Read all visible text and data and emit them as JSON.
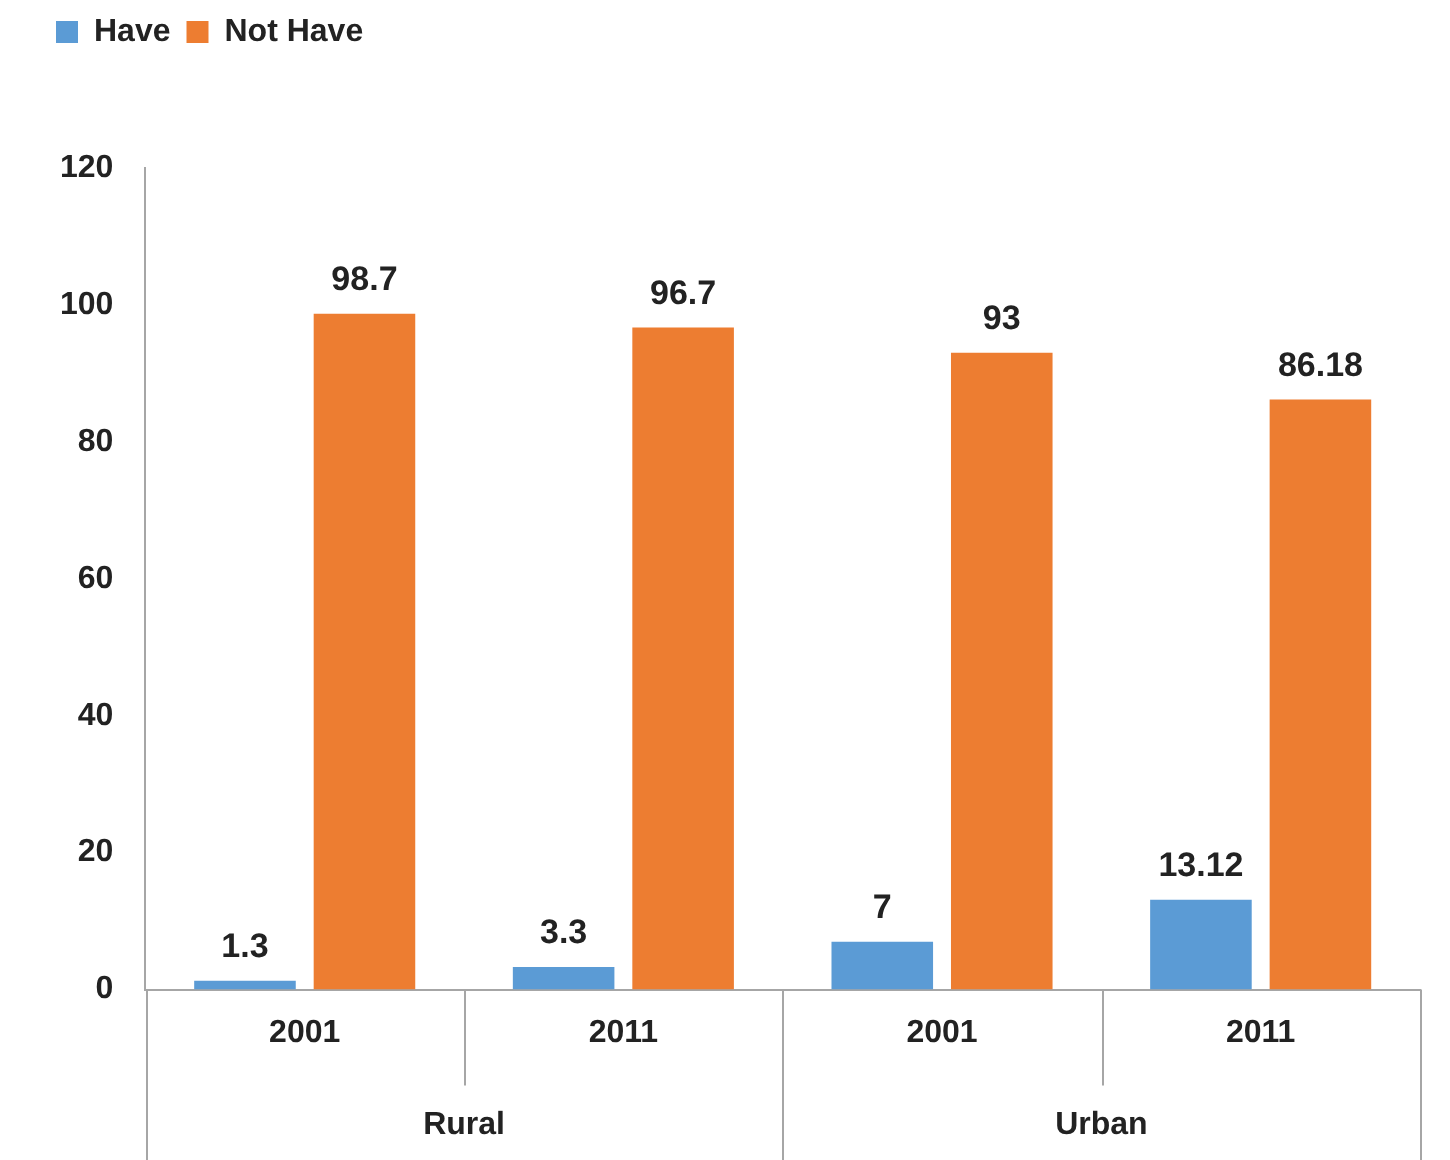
{
  "chart_data": {
    "type": "bar",
    "categories": [
      "2001",
      "2011",
      "2001",
      "2011"
    ],
    "series": [
      {
        "name": "Have",
        "color": "#5b9bd5",
        "values": [
          1.3,
          3.3,
          7,
          13.12
        ]
      },
      {
        "name": "Not Have",
        "color": "#ed7d31",
        "values": [
          98.7,
          96.7,
          93,
          86.18
        ]
      }
    ],
    "ylim": [
      0,
      120
    ],
    "yticks": [
      0,
      20,
      40,
      60,
      80,
      100,
      120
    ],
    "grid": false,
    "legend": "top left",
    "data_labels": true,
    "annotations": [
      "Rural",
      "Urban"
    ]
  }
}
